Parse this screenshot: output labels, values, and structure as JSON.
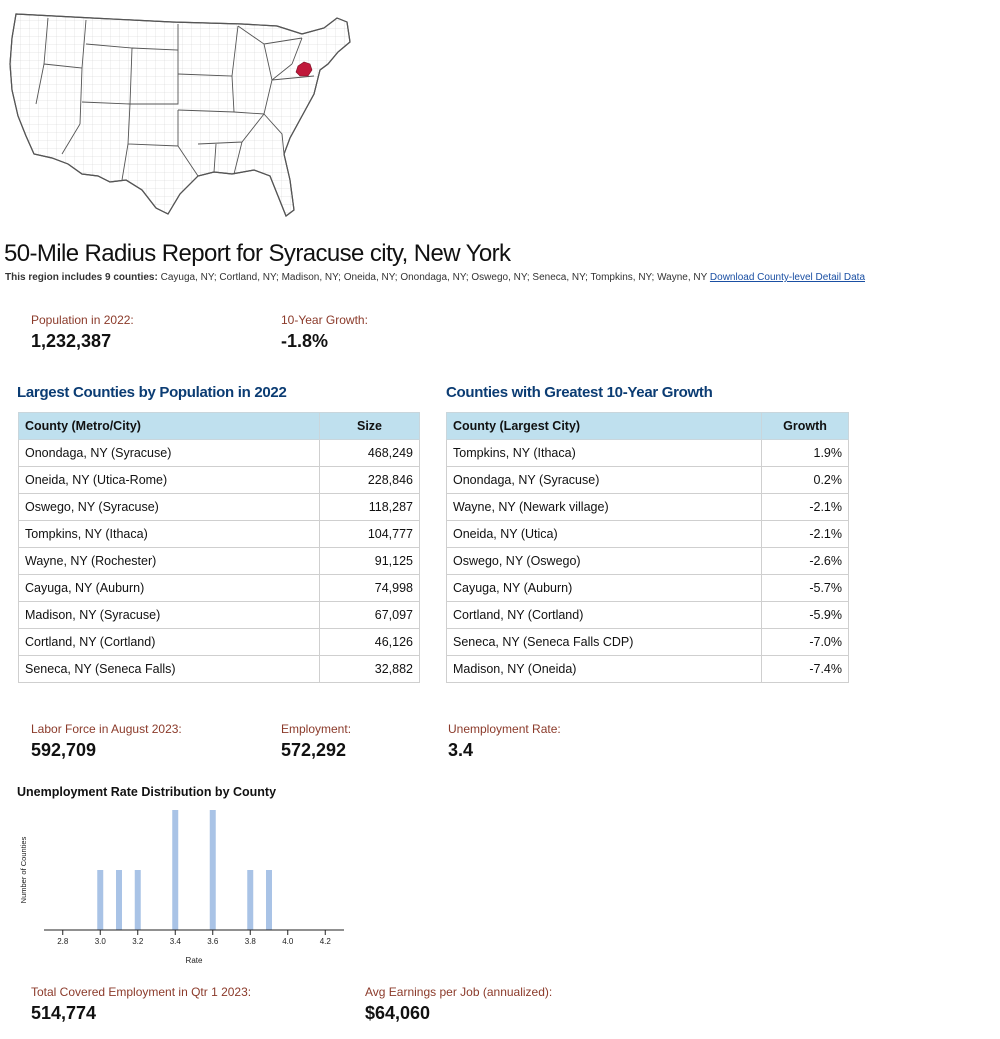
{
  "map": {
    "highlight_color": "#c0183a",
    "icon": "us-map-icon"
  },
  "report": {
    "title": "50-Mile Radius Report for Syracuse city, New York",
    "region_prefix": "This region includes 9 counties:",
    "region_counties": "Cayuga, NY; Cortland, NY; Madison, NY; Oneida, NY; Onondaga, NY; Oswego, NY; Seneca, NY; Tompkins, NY; Wayne, NY",
    "download_link": "Download County-level Detail Data"
  },
  "population": {
    "label": "Population in 2022:",
    "value": "1,232,387",
    "growth_label": "10-Year Growth:",
    "growth_value": "-1.8%"
  },
  "largest_counties": {
    "title": "Largest Counties by Population in 2022",
    "headers": [
      "County (Metro/City)",
      "Size"
    ],
    "rows": [
      [
        "Onondaga, NY (Syracuse)",
        "468,249"
      ],
      [
        "Oneida, NY (Utica-Rome)",
        "228,846"
      ],
      [
        "Oswego, NY (Syracuse)",
        "118,287"
      ],
      [
        "Tompkins, NY (Ithaca)",
        "104,777"
      ],
      [
        "Wayne, NY (Rochester)",
        "91,125"
      ],
      [
        "Cayuga, NY (Auburn)",
        "74,998"
      ],
      [
        "Madison, NY (Syracuse)",
        "67,097"
      ],
      [
        "Cortland, NY (Cortland)",
        "46,126"
      ],
      [
        "Seneca, NY (Seneca Falls)",
        "32,882"
      ]
    ]
  },
  "growth_counties": {
    "title": "Counties with Greatest 10-Year Growth",
    "headers": [
      "County (Largest City)",
      "Growth"
    ],
    "rows": [
      [
        "Tompkins, NY (Ithaca)",
        "1.9%"
      ],
      [
        "Onondaga, NY (Syracuse)",
        "0.2%"
      ],
      [
        "Wayne, NY (Newark village)",
        "-2.1%"
      ],
      [
        "Oneida, NY (Utica)",
        "-2.1%"
      ],
      [
        "Oswego, NY (Oswego)",
        "-2.6%"
      ],
      [
        "Cayuga, NY (Auburn)",
        "-5.7%"
      ],
      [
        "Cortland, NY (Cortland)",
        "-5.9%"
      ],
      [
        "Seneca, NY (Seneca Falls CDP)",
        "-7.0%"
      ],
      [
        "Madison, NY (Oneida)",
        "-7.4%"
      ]
    ]
  },
  "labor": {
    "force_label": "Labor Force in August 2023:",
    "force_value": "592,709",
    "employment_label": "Employment:",
    "employment_value": "572,292",
    "unemployment_label": "Unemployment Rate:",
    "unemployment_value": "3.4"
  },
  "chart_data": {
    "type": "bar",
    "title": "Unemployment Rate Distribution by County",
    "xlabel": "Rate",
    "ylabel": "Number of Counties",
    "x_ticks": [
      "2.8",
      "3.0",
      "3.2",
      "3.4",
      "3.6",
      "3.8",
      "4.0",
      "4.2"
    ],
    "xlim": [
      2.7,
      4.3
    ],
    "ylim": [
      0,
      2
    ],
    "bars": [
      {
        "x": 3.0,
        "count": 1
      },
      {
        "x": 3.1,
        "count": 1
      },
      {
        "x": 3.2,
        "count": 1
      },
      {
        "x": 3.4,
        "count": 2
      },
      {
        "x": 3.6,
        "count": 2
      },
      {
        "x": 3.8,
        "count": 1
      },
      {
        "x": 3.9,
        "count": 1
      }
    ],
    "bar_color": "#a9c3e6"
  },
  "covered": {
    "employment_label": "Total Covered Employment in Qtr 1 2023:",
    "employment_value": "514,774",
    "earnings_label": "Avg Earnings per Job (annualized):",
    "earnings_value": "$64,060"
  }
}
